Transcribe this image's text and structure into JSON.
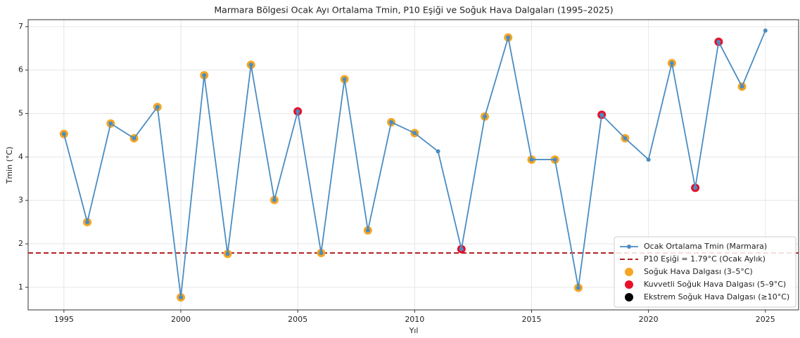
{
  "chart_data": {
    "type": "line",
    "title": "Marmara Bölgesi Ocak Ayı Ortalama Tmin, P10 Eşiği ve Soğuk Hava Dalgaları (1995–2025)",
    "xlabel": "Yıl",
    "ylabel": "Tmin (°C)",
    "x": [
      1995,
      1996,
      1997,
      1998,
      1999,
      2000,
      2001,
      2002,
      2003,
      2004,
      2005,
      2006,
      2007,
      2008,
      2009,
      2010,
      2011,
      2012,
      2013,
      2014,
      2015,
      2016,
      2017,
      2018,
      2019,
      2020,
      2021,
      2022,
      2023,
      2024,
      2025
    ],
    "series": [
      {
        "name": "Ocak Ortalama Tmin (Marmara)",
        "color": "#4a8cc2",
        "type": "line",
        "values": [
          4.53,
          2.5,
          4.77,
          4.43,
          5.15,
          0.77,
          5.88,
          1.77,
          6.12,
          3.01,
          5.05,
          1.79,
          5.79,
          2.31,
          4.8,
          4.55,
          4.13,
          1.88,
          4.93,
          6.75,
          3.94,
          3.94,
          0.99,
          4.97,
          4.43,
          3.94,
          6.16,
          3.29,
          6.65,
          5.62,
          6.91
        ]
      },
      {
        "name": "Soğuk Hava Dalgası (3–5°C)",
        "color": "#f5a623",
        "type": "scatter",
        "values": [
          4.53,
          2.5,
          4.77,
          4.43,
          5.15,
          0.77,
          5.88,
          1.77,
          6.12,
          3.01,
          null,
          1.79,
          5.79,
          2.31,
          4.8,
          4.55,
          null,
          null,
          4.93,
          6.75,
          3.94,
          3.94,
          0.99,
          null,
          4.43,
          null,
          6.16,
          null,
          null,
          5.62,
          null
        ]
      },
      {
        "name": "Kuvvetli Soğuk Hava Dalgası (5–9°C)",
        "color": "#e8102a",
        "type": "scatter",
        "values": [
          null,
          null,
          null,
          null,
          null,
          null,
          null,
          null,
          null,
          null,
          5.05,
          null,
          null,
          null,
          null,
          null,
          null,
          1.88,
          null,
          null,
          null,
          null,
          null,
          4.97,
          null,
          null,
          null,
          3.29,
          6.65,
          null,
          null
        ]
      },
      {
        "name": "Ekstrem Soğuk Hava Dalgası (≥10°C)",
        "color": "#000000",
        "type": "scatter",
        "values": [
          null,
          null,
          null,
          null,
          null,
          null,
          null,
          null,
          null,
          null,
          null,
          null,
          null,
          null,
          null,
          null,
          null,
          null,
          null,
          null,
          null,
          null,
          null,
          null,
          null,
          null,
          null,
          null,
          null,
          null,
          null
        ]
      }
    ],
    "threshold": {
      "name": "P10 Eşiği = 1.79°C (Ocak Aylık)",
      "value": 1.79,
      "color": "#b22222"
    },
    "xlim": [
      1993.47,
      2026.42
    ],
    "xticks": [
      1995,
      2000,
      2005,
      2010,
      2015,
      2020,
      2025
    ],
    "ylim": [
      0.48,
      7.16
    ],
    "yticks": [
      1,
      2,
      3,
      4,
      5,
      6,
      7
    ],
    "grid": true,
    "legend": "lower right"
  }
}
